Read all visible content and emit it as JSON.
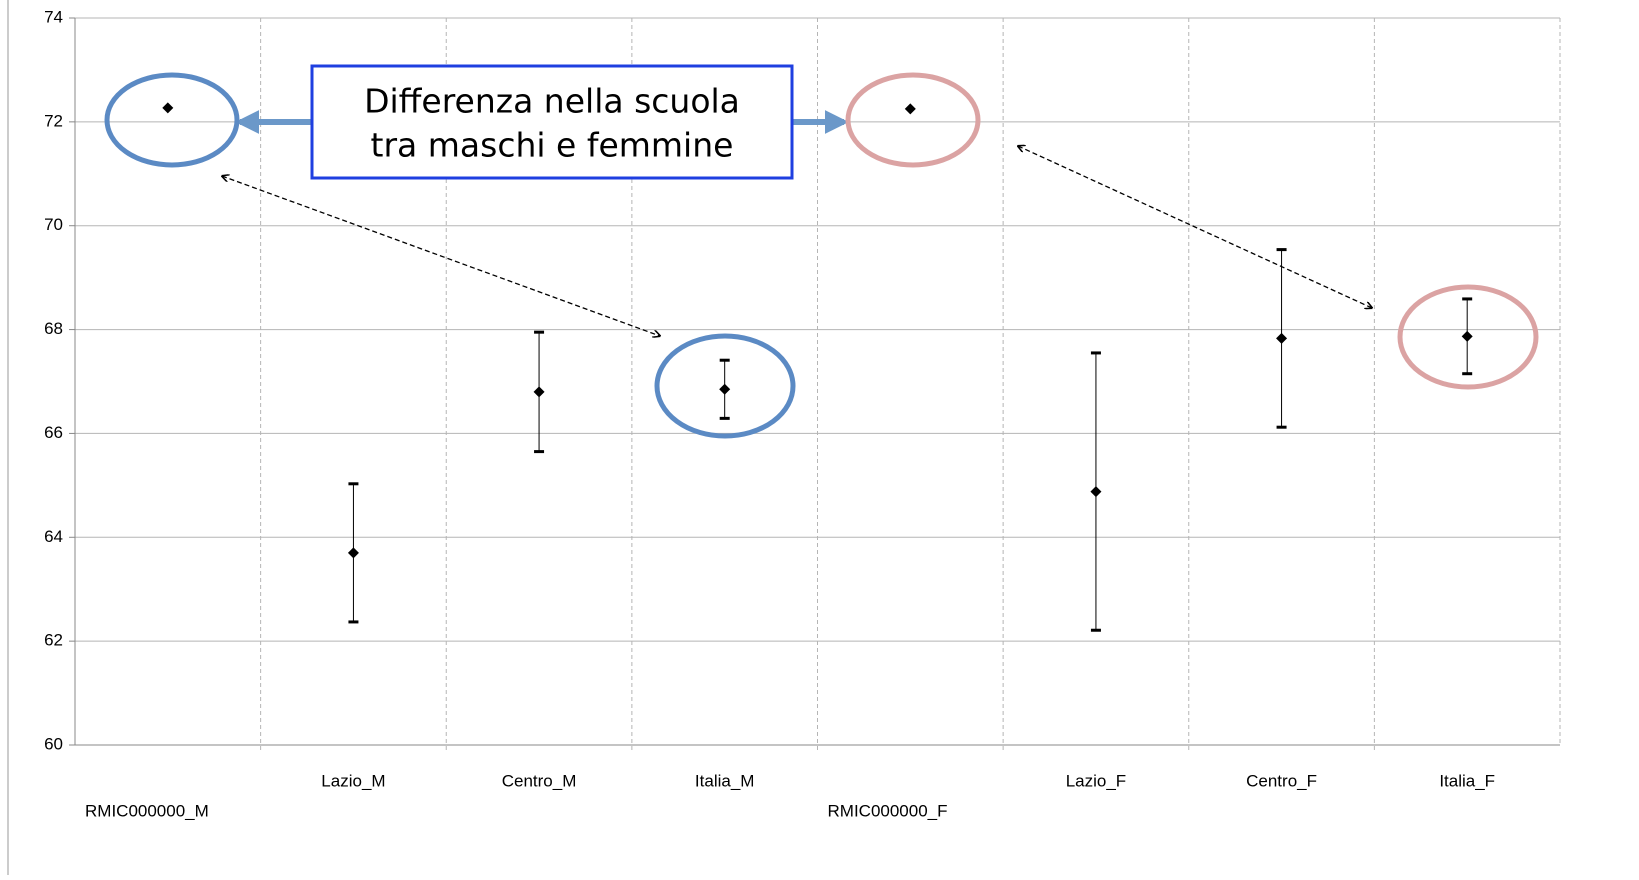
{
  "chart_data": {
    "type": "errorbar",
    "categories": [
      "RMIC000000_M",
      "Lazio_M",
      "Centro_M",
      "Italia_M",
      "RMIC000000_F",
      "Lazio_F",
      "Centro_F",
      "Italia_F"
    ],
    "values": [
      72.27,
      63.7,
      66.8,
      66.85,
      72.25,
      64.88,
      67.83,
      67.87
    ],
    "errors": [
      null,
      1.33,
      1.15,
      0.56,
      null,
      2.67,
      1.71,
      0.72
    ],
    "color": "#000000",
    "ylim": [
      60,
      74
    ],
    "yticks": [
      60,
      62,
      64,
      66,
      68,
      70,
      72,
      74
    ],
    "grid": true,
    "annotation": [
      "Differenza nella scuola",
      "tra maschi e femmine"
    ]
  }
}
